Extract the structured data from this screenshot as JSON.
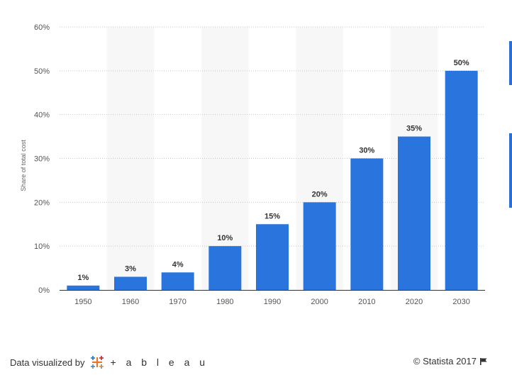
{
  "chart_data": {
    "type": "bar",
    "categories": [
      "1950",
      "1960",
      "1970",
      "1980",
      "1990",
      "2000",
      "2010",
      "2020",
      "2030"
    ],
    "values": [
      1,
      3,
      4,
      10,
      15,
      20,
      30,
      35,
      50
    ],
    "value_labels": [
      "1%",
      "3%",
      "4%",
      "10%",
      "15%",
      "20%",
      "30%",
      "35%",
      "50%"
    ],
    "title": "",
    "xlabel": "",
    "ylabel": "Share of total cost",
    "ylim": [
      0,
      60
    ],
    "yticks": [
      0,
      10,
      20,
      30,
      40,
      50,
      60
    ],
    "ytick_labels": [
      "0%",
      "10%",
      "20%",
      "30%",
      "40%",
      "50%",
      "60%"
    ],
    "grid": true,
    "bar_color": "#2a75dd",
    "band_color": "#f7f7f7"
  },
  "footer": {
    "visualized_by": "Data visualized by",
    "tableau_word": "+ a b l e a u",
    "copyright": "© Statista 2017"
  },
  "icons": {
    "tableau_logo": "tableau-cross-logo-icon",
    "flag": "flag-icon"
  }
}
